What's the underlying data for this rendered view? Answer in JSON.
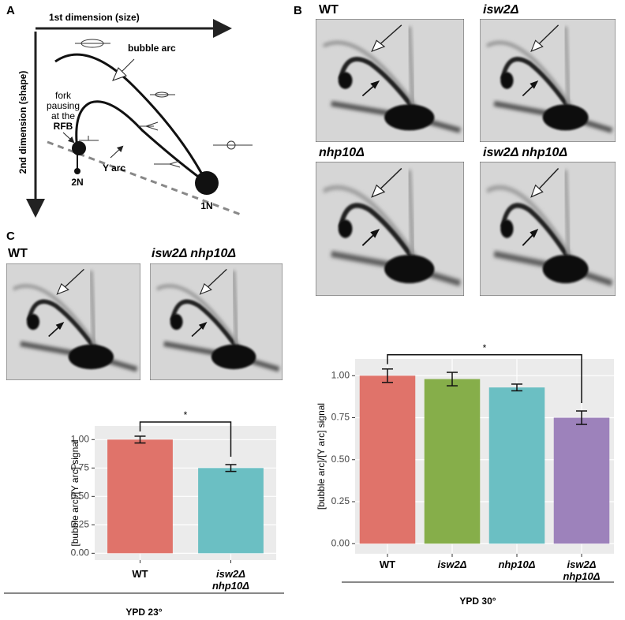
{
  "panel_a": {
    "label": "A",
    "x_axis_label": "1st dimension (size)",
    "y_axis_label": "2nd dimension (shape)",
    "bubble_arc": "bubble arc",
    "fork_pausing": [
      "fork",
      "pausing",
      "at the",
      "RFB"
    ],
    "y_arc": "Y arc",
    "n2": "2N",
    "n1": "1N"
  },
  "panel_b": {
    "label": "B",
    "blots": [
      "WT",
      "isw2Δ",
      "nhp10Δ",
      "isw2Δ nhp10Δ"
    ]
  },
  "panel_c": {
    "label": "C",
    "blots": [
      "WT",
      "isw2Δ nhp10Δ"
    ]
  },
  "chart_data": [
    {
      "type": "bar",
      "ylabel": "[bubble arc]/[Y arc] signal",
      "categories": [
        "WT",
        "isw2Δ nhp10Δ"
      ],
      "values": [
        1.0,
        0.75
      ],
      "errors": [
        0.03,
        0.03
      ],
      "colors": [
        "#e0736a",
        "#6bbfc3"
      ],
      "ylim": [
        -0.06,
        1.12
      ],
      "yticks": [
        {
          "value": 0,
          "label": "0.00"
        },
        {
          "value": 0.25,
          "label": "0.25"
        },
        {
          "value": 0.5,
          "label": "0.50"
        },
        {
          "value": 0.75,
          "label": "0.75"
        },
        {
          "value": 1,
          "label": "1.00"
        }
      ],
      "grid": true,
      "annotation": "*",
      "footer": "YPD 23°"
    },
    {
      "type": "bar",
      "ylabel": "[bubble arc]/[Y arc] signal",
      "categories": [
        "WT",
        "isw2Δ",
        "nhp10Δ",
        "isw2Δ nhp10Δ"
      ],
      "values": [
        1.0,
        0.98,
        0.93,
        0.75
      ],
      "errors": [
        0.04,
        0.04,
        0.02,
        0.04
      ],
      "colors": [
        "#e0736a",
        "#86ae4a",
        "#6bbfc3",
        "#9d82bb"
      ],
      "ylim": [
        -0.06,
        1.1
      ],
      "yticks": [
        {
          "value": 0,
          "label": "0.00"
        },
        {
          "value": 0.25,
          "label": "0.25"
        },
        {
          "value": 0.5,
          "label": "0.50"
        },
        {
          "value": 0.75,
          "label": "0.75"
        },
        {
          "value": 1,
          "label": "1.00"
        }
      ],
      "grid": true,
      "annotation": "*",
      "footer": "YPD 30°"
    }
  ]
}
